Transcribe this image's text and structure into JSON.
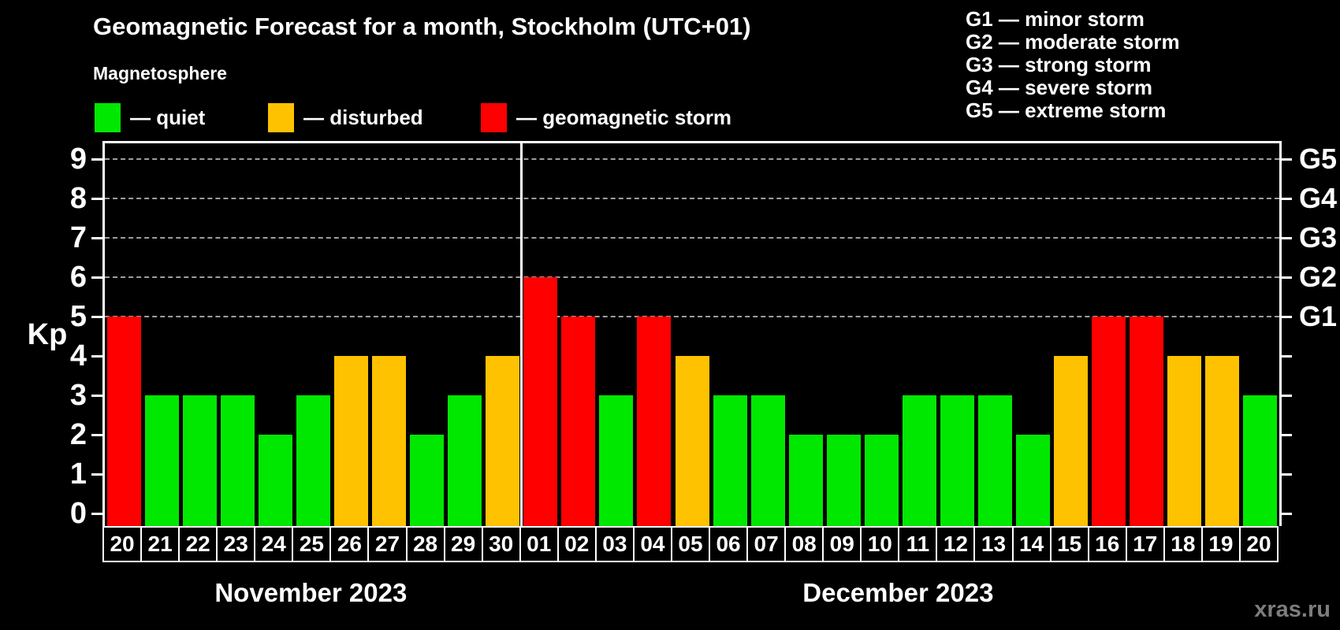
{
  "title": "Geomagnetic Forecast for a month, Stockholm (UTC+01)",
  "subtitle": "Magnetosphere",
  "legend": {
    "items": [
      {
        "name": "quiet",
        "label": "— quiet",
        "color": "#00e800"
      },
      {
        "name": "disturbed",
        "label": "— disturbed",
        "color": "#ffc200"
      },
      {
        "name": "storm",
        "label": "— geomagnetic storm",
        "color": "#fe0000"
      }
    ]
  },
  "g_scale_legend": {
    "lines": [
      "G1 — minor storm",
      "G2 — moderate storm",
      "G3 — strong storm",
      "G4 — severe storm",
      "G5 — extreme storm"
    ]
  },
  "y_axis": {
    "label": "Kp",
    "ticks": [
      0,
      1,
      2,
      3,
      4,
      5,
      6,
      7,
      8,
      9
    ]
  },
  "right_axis": {
    "labels": [
      {
        "kp": 5,
        "label": "G1"
      },
      {
        "kp": 6,
        "label": "G2"
      },
      {
        "kp": 7,
        "label": "G3"
      },
      {
        "kp": 8,
        "label": "G4"
      },
      {
        "kp": 9,
        "label": "G5"
      }
    ]
  },
  "watermark": "xras.ru",
  "chart_data": {
    "type": "bar",
    "title": "Geomagnetic Forecast for a month, Stockholm (UTC+01)",
    "xlabel": "",
    "ylabel": "Kp",
    "ylim": [
      0,
      9
    ],
    "grid_levels_kp": [
      5,
      6,
      7,
      8,
      9
    ],
    "legend_position": "top-left",
    "status_colors": {
      "quiet": "#00e800",
      "disturbed": "#ffc200",
      "storm": "#fe0000"
    },
    "months": [
      {
        "label": "November 2023",
        "days": 11
      },
      {
        "label": "December 2023",
        "days": 20
      }
    ],
    "points": [
      {
        "day": "20",
        "month": "November 2023",
        "kp": 5,
        "status": "storm"
      },
      {
        "day": "21",
        "month": "November 2023",
        "kp": 3,
        "status": "quiet"
      },
      {
        "day": "22",
        "month": "November 2023",
        "kp": 3,
        "status": "quiet"
      },
      {
        "day": "23",
        "month": "November 2023",
        "kp": 3,
        "status": "quiet"
      },
      {
        "day": "24",
        "month": "November 2023",
        "kp": 2,
        "status": "quiet"
      },
      {
        "day": "25",
        "month": "November 2023",
        "kp": 3,
        "status": "quiet"
      },
      {
        "day": "26",
        "month": "November 2023",
        "kp": 4,
        "status": "disturbed"
      },
      {
        "day": "27",
        "month": "November 2023",
        "kp": 4,
        "status": "disturbed"
      },
      {
        "day": "28",
        "month": "November 2023",
        "kp": 2,
        "status": "quiet"
      },
      {
        "day": "29",
        "month": "November 2023",
        "kp": 3,
        "status": "quiet"
      },
      {
        "day": "30",
        "month": "November 2023",
        "kp": 4,
        "status": "disturbed"
      },
      {
        "day": "01",
        "month": "December 2023",
        "kp": 6,
        "status": "storm"
      },
      {
        "day": "02",
        "month": "December 2023",
        "kp": 5,
        "status": "storm"
      },
      {
        "day": "03",
        "month": "December 2023",
        "kp": 3,
        "status": "quiet"
      },
      {
        "day": "04",
        "month": "December 2023",
        "kp": 5,
        "status": "storm"
      },
      {
        "day": "05",
        "month": "December 2023",
        "kp": 4,
        "status": "disturbed"
      },
      {
        "day": "06",
        "month": "December 2023",
        "kp": 3,
        "status": "quiet"
      },
      {
        "day": "07",
        "month": "December 2023",
        "kp": 3,
        "status": "quiet"
      },
      {
        "day": "08",
        "month": "December 2023",
        "kp": 2,
        "status": "quiet"
      },
      {
        "day": "09",
        "month": "December 2023",
        "kp": 2,
        "status": "quiet"
      },
      {
        "day": "10",
        "month": "December 2023",
        "kp": 2,
        "status": "quiet"
      },
      {
        "day": "11",
        "month": "December 2023",
        "kp": 3,
        "status": "quiet"
      },
      {
        "day": "12",
        "month": "December 2023",
        "kp": 3,
        "status": "quiet"
      },
      {
        "day": "13",
        "month": "December 2023",
        "kp": 3,
        "status": "quiet"
      },
      {
        "day": "14",
        "month": "December 2023",
        "kp": 2,
        "status": "quiet"
      },
      {
        "day": "15",
        "month": "December 2023",
        "kp": 4,
        "status": "disturbed"
      },
      {
        "day": "16",
        "month": "December 2023",
        "kp": 5,
        "status": "storm"
      },
      {
        "day": "17",
        "month": "December 2023",
        "kp": 5,
        "status": "storm"
      },
      {
        "day": "18",
        "month": "December 2023",
        "kp": 4,
        "status": "disturbed"
      },
      {
        "day": "19",
        "month": "December 2023",
        "kp": 4,
        "status": "disturbed"
      },
      {
        "day": "20",
        "month": "December 2023",
        "kp": 3,
        "status": "quiet"
      }
    ]
  }
}
